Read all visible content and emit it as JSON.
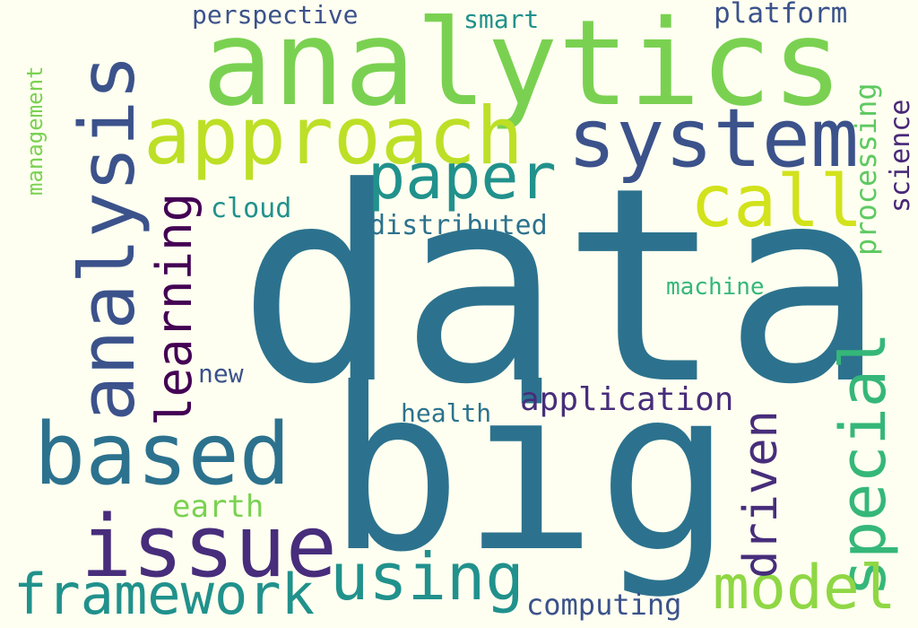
{
  "words": [
    {
      "text": "data",
      "color": "#2c728e"
    },
    {
      "text": "big",
      "color": "#2c728e"
    },
    {
      "text": "analytics",
      "color": "#7ad151"
    },
    {
      "text": "analysis",
      "color": "#3b528b"
    },
    {
      "text": "system",
      "color": "#3b528b"
    },
    {
      "text": "approach",
      "color": "#bddf26"
    },
    {
      "text": "paper",
      "color": "#21918c"
    },
    {
      "text": "call",
      "color": "#d2e21b"
    },
    {
      "text": "based",
      "color": "#2c728e"
    },
    {
      "text": "issue",
      "color": "#472d7b"
    },
    {
      "text": "special",
      "color": "#35b779"
    },
    {
      "text": "using",
      "color": "#21918c"
    },
    {
      "text": "model",
      "color": "#8fd744"
    },
    {
      "text": "framework",
      "color": "#21918c"
    },
    {
      "text": "driven",
      "color": "#472d7b"
    },
    {
      "text": "learning",
      "color": "#440154"
    },
    {
      "text": "application",
      "color": "#472d7b"
    },
    {
      "text": "distributed",
      "color": "#2c728e"
    },
    {
      "text": "cloud",
      "color": "#21918c"
    },
    {
      "text": "machine",
      "color": "#35b779"
    },
    {
      "text": "processing",
      "color": "#5ec962"
    },
    {
      "text": "science",
      "color": "#482878"
    },
    {
      "text": "management",
      "color": "#7ad151"
    },
    {
      "text": "perspective",
      "color": "#3b528b"
    },
    {
      "text": "smart",
      "color": "#21918c"
    },
    {
      "text": "platform",
      "color": "#3b528b"
    },
    {
      "text": "new",
      "color": "#3b528b"
    },
    {
      "text": "health",
      "color": "#2c728e"
    },
    {
      "text": "earth",
      "color": "#7ad151"
    },
    {
      "text": "computing",
      "color": "#3b528b"
    }
  ]
}
